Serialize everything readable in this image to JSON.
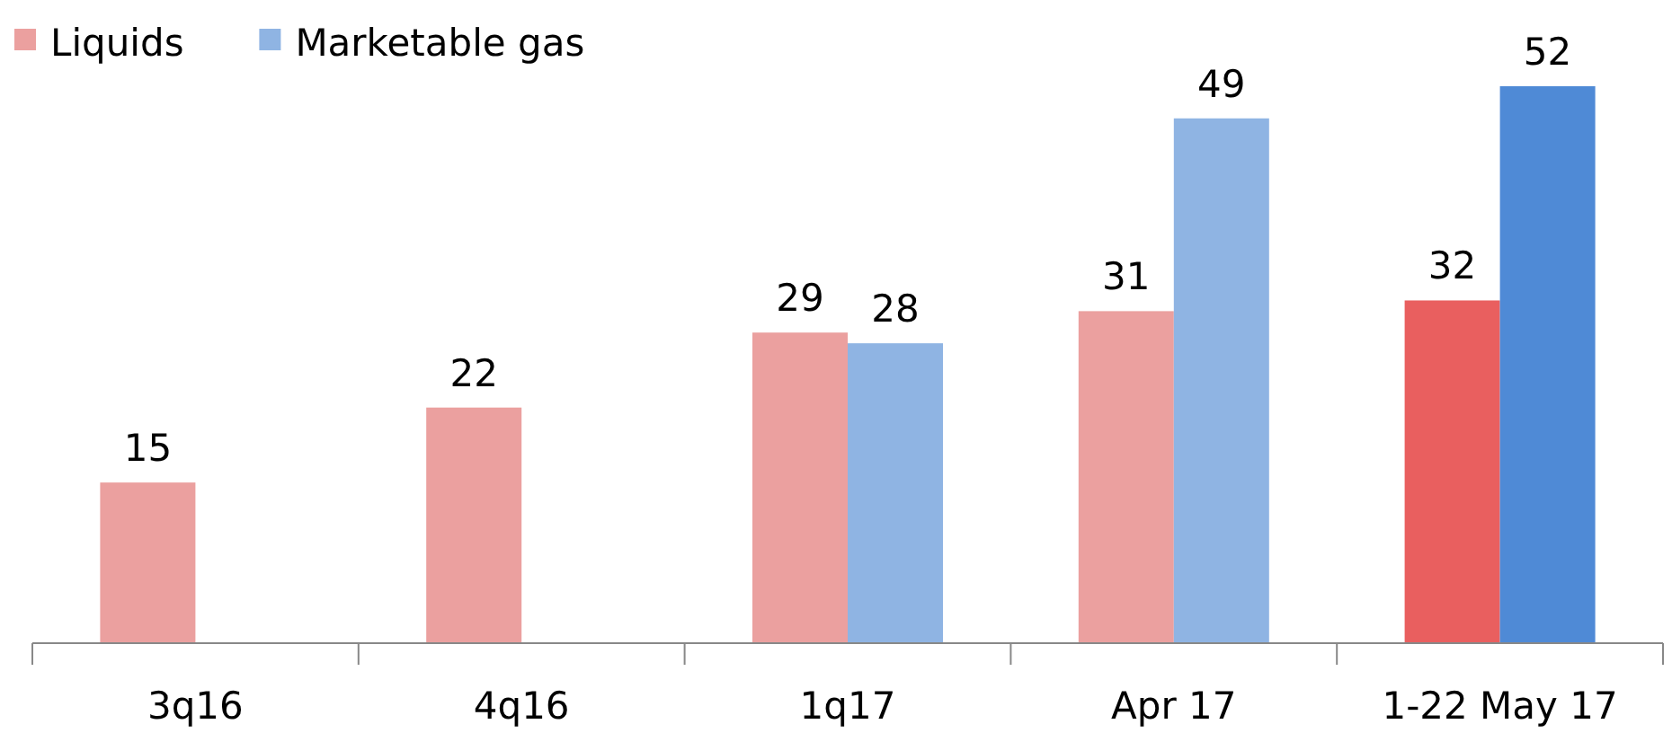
{
  "chart_data": {
    "type": "bar",
    "categories": [
      "3q16",
      "4q16",
      "1q17",
      "Apr 17",
      "1-22 May 17"
    ],
    "series": [
      {
        "name": "Liquids",
        "color": "#eba09f",
        "colors": [
          "#eba09f",
          "#eba09f",
          "#eba09f",
          "#eba09f",
          "#e95f5f"
        ],
        "values": [
          15,
          22,
          29,
          31,
          32
        ]
      },
      {
        "name": "Marketable gas",
        "color": "#8fb4e3",
        "colors": [
          null,
          null,
          "#8fb4e3",
          "#8fb4e3",
          "#4f8ad6"
        ],
        "values": [
          null,
          null,
          28,
          49,
          52
        ]
      }
    ],
    "data_labels": true,
    "legend": "top left"
  }
}
